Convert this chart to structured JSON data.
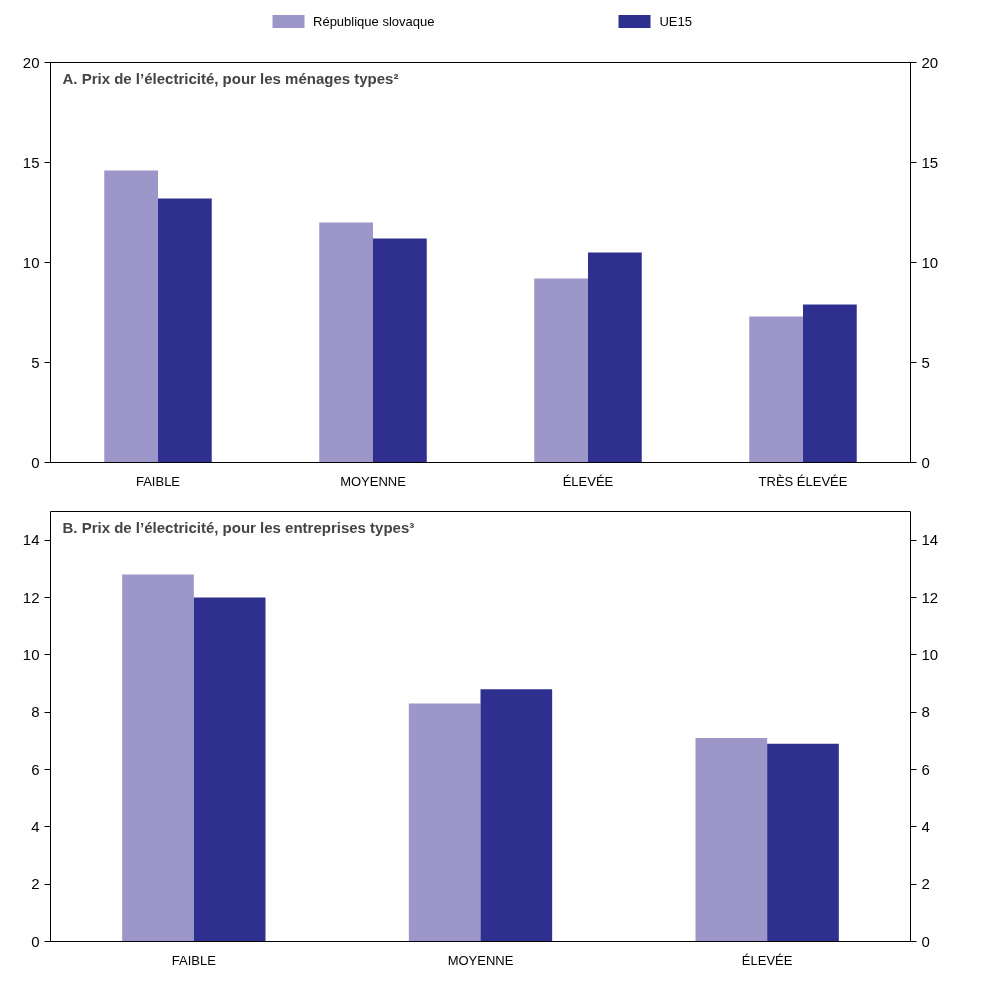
{
  "chart_data": [
    {
      "type": "bar",
      "title": "A. Prix de l’électricité, pour les ménages types²",
      "categories": [
        "FAIBLE",
        "MOYENNE",
        "ÉLEVÉE",
        "TRÈS ÉLEVÉE"
      ],
      "series": [
        {
          "name": "République slovaque",
          "color": "#9d97c9",
          "values": [
            14.6,
            12.0,
            9.2,
            7.3
          ]
        },
        {
          "name": "UE15",
          "color": "#2e2f8f",
          "values": [
            13.2,
            11.2,
            10.5,
            7.9
          ]
        }
      ],
      "ylim": [
        0,
        20
      ],
      "yticks": [
        0,
        5,
        10,
        15,
        20
      ],
      "y2lim": [
        0,
        20
      ],
      "y2ticks": [
        0,
        5,
        10,
        15,
        20
      ],
      "legend": "top"
    },
    {
      "type": "bar",
      "title": "B. Prix de l’électricité, pour les entreprises types³",
      "categories": [
        "FAIBLE",
        "MOYENNE",
        "ÉLEVÉE"
      ],
      "series": [
        {
          "color": "#9d97c9",
          "values": [
            12.8,
            8.3,
            7.1
          ]
        },
        {
          "color": "#2e2f8f",
          "values": [
            12.0,
            8.8,
            6.9
          ]
        }
      ],
      "ylim": [
        0,
        15
      ],
      "yticks": [
        0,
        2,
        4,
        6,
        8,
        10,
        12,
        14
      ],
      "y2lim": [
        0,
        15
      ],
      "y2ticks": [
        0,
        2,
        4,
        6,
        8,
        10,
        12,
        14
      ]
    }
  ]
}
